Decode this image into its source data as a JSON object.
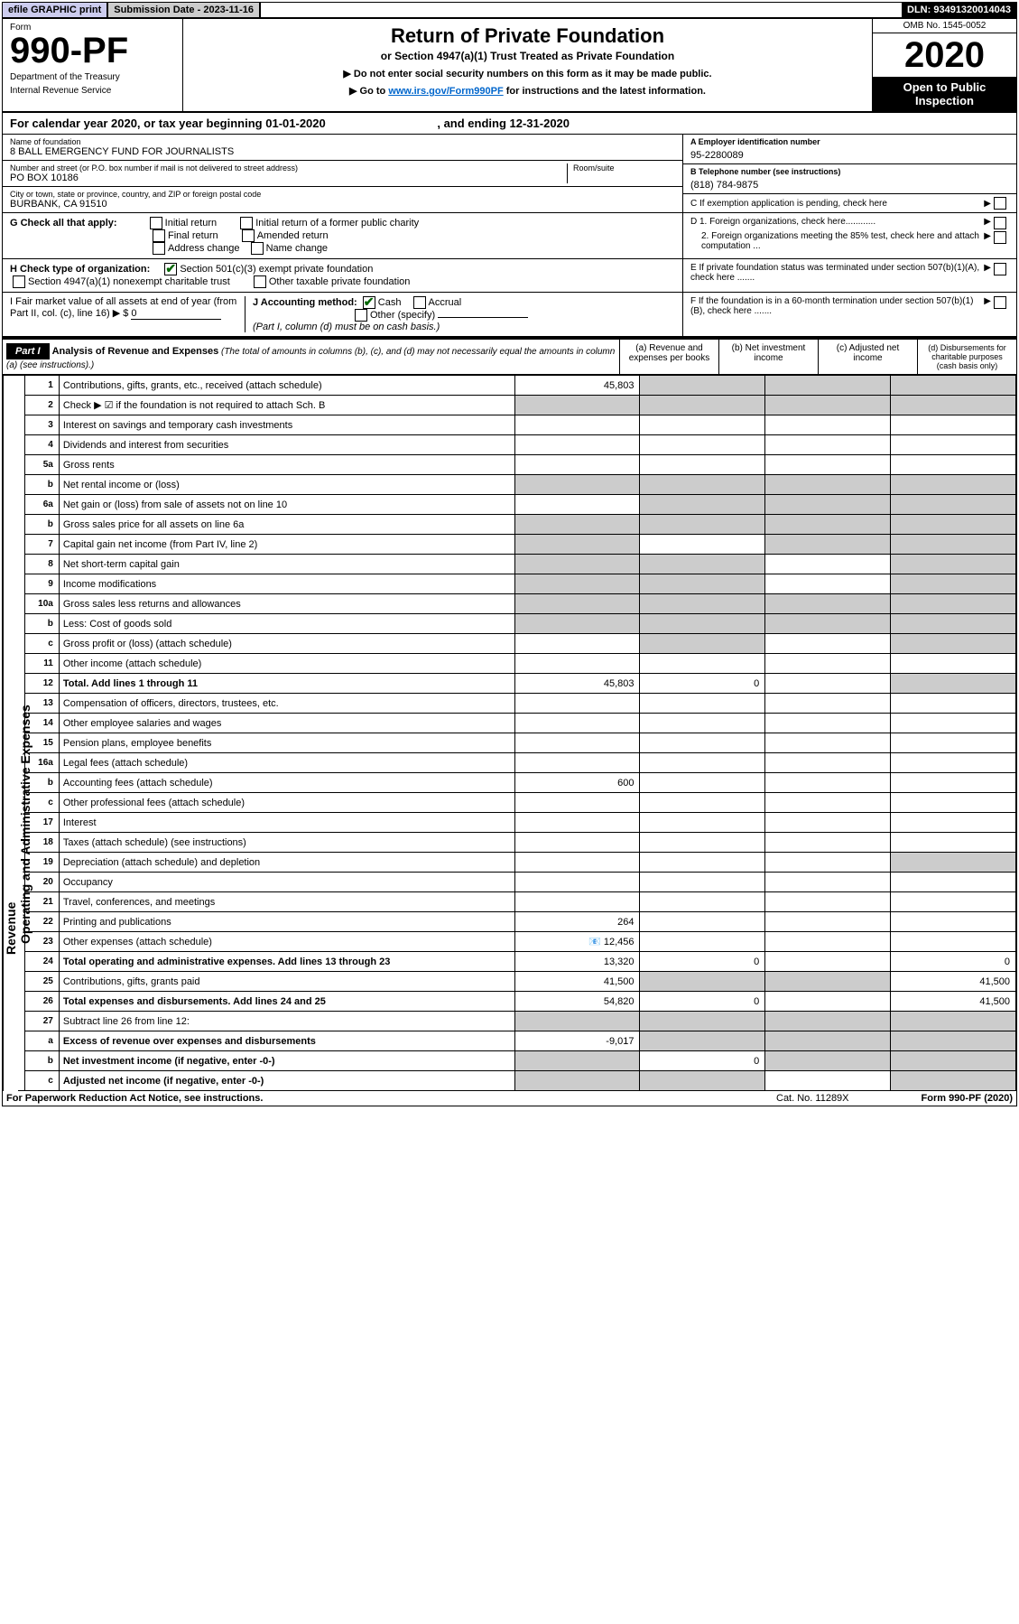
{
  "topbar": {
    "efile": "efile GRAPHIC print",
    "subdate_label": "Submission Date - ",
    "subdate": "2023-11-16",
    "dln_label": "DLN: ",
    "dln": "93491320014043"
  },
  "header": {
    "form_label": "Form",
    "form_no": "990-PF",
    "dept1": "Department of the Treasury",
    "dept2": "Internal Revenue Service",
    "title": "Return of Private Foundation",
    "subtitle": "or Section 4947(a)(1) Trust Treated as Private Foundation",
    "note1": "▶ Do not enter social security numbers on this form as it may be made public.",
    "note2_pre": "▶ Go to ",
    "note2_link": "www.irs.gov/Form990PF",
    "note2_post": " for instructions and the latest information.",
    "omb": "OMB No. 1545-0052",
    "year": "2020",
    "open": "Open to Public Inspection"
  },
  "calyear": {
    "text_pre": "For calendar year 2020, or tax year beginning ",
    "begin": "01-01-2020",
    "text_mid": " , and ending ",
    "end": "12-31-2020"
  },
  "entity": {
    "name_label": "Name of foundation",
    "name": "8 BALL EMERGENCY FUND FOR JOURNALISTS",
    "addr_label": "Number and street (or P.O. box number if mail is not delivered to street address)",
    "addr": "PO BOX 10186",
    "room_label": "Room/suite",
    "city_label": "City or town, state or province, country, and ZIP or foreign postal code",
    "city": "BURBANK, CA  91510",
    "ein_label": "A Employer identification number",
    "ein": "95-2280089",
    "phone_label": "B Telephone number (see instructions)",
    "phone": "(818) 784-9875",
    "c_label": "C If exemption application is pending, check here",
    "d1": "D 1. Foreign organizations, check here............",
    "d2": "2. Foreign organizations meeting the 85% test, check here and attach computation ...",
    "e_label": "E If private foundation status was terminated under section 507(b)(1)(A), check here .......",
    "f_label": "F If the foundation is in a 60-month termination under section 507(b)(1)(B), check here ......."
  },
  "g": {
    "label": "G Check all that apply:",
    "opts": [
      "Initial return",
      "Initial return of a former public charity",
      "Final return",
      "Amended return",
      "Address change",
      "Name change"
    ]
  },
  "h": {
    "label": "H Check type of organization:",
    "opt1": "Section 501(c)(3) exempt private foundation",
    "opt2": "Section 4947(a)(1) nonexempt charitable trust",
    "opt3": "Other taxable private foundation"
  },
  "i": {
    "label": "I Fair market value of all assets at end of year (from Part II, col. (c), line 16) ▶ $",
    "val": "0"
  },
  "j": {
    "label": "J Accounting method:",
    "cash": "Cash",
    "accrual": "Accrual",
    "other": "Other (specify)",
    "note": "(Part I, column (d) must be on cash basis.)"
  },
  "part1": {
    "header": "Part I",
    "title": "Analysis of Revenue and Expenses",
    "note": " (The total of amounts in columns (b), (c), and (d) may not necessarily equal the amounts in column (a) (see instructions).)",
    "cols": {
      "a": "(a) Revenue and expenses per books",
      "b": "(b) Net investment income",
      "c": "(c) Adjusted net income",
      "d": "(d) Disbursements for charitable purposes (cash basis only)"
    }
  },
  "sidelabels": {
    "rev": "Revenue",
    "exp": "Operating and Administrative Expenses"
  },
  "rows": [
    {
      "n": "1",
      "t": "Contributions, gifts, grants, etc., received (attach schedule)",
      "a": "45,803",
      "shade_bcd": true
    },
    {
      "n": "2",
      "t": "Check ▶ ☑ if the foundation is not required to attach Sch. B",
      "checkmark": true,
      "shade_all": true
    },
    {
      "n": "3",
      "t": "Interest on savings and temporary cash investments"
    },
    {
      "n": "4",
      "t": "Dividends and interest from securities"
    },
    {
      "n": "5a",
      "t": "Gross rents"
    },
    {
      "n": "b",
      "t": "Net rental income or (loss)",
      "sub": true,
      "shade_all": true
    },
    {
      "n": "6a",
      "t": "Net gain or (loss) from sale of assets not on line 10",
      "shade_bcd": true
    },
    {
      "n": "b",
      "t": "Gross sales price for all assets on line 6a",
      "sub": true,
      "shade_all": true
    },
    {
      "n": "7",
      "t": "Capital gain net income (from Part IV, line 2)",
      "shade_acd": true
    },
    {
      "n": "8",
      "t": "Net short-term capital gain",
      "shade_abd": true
    },
    {
      "n": "9",
      "t": "Income modifications",
      "shade_abd": true
    },
    {
      "n": "10a",
      "t": "Gross sales less returns and allowances",
      "sub": true,
      "shade_all": true
    },
    {
      "n": "b",
      "t": "Less: Cost of goods sold",
      "sub": true,
      "shade_all": true
    },
    {
      "n": "c",
      "t": "Gross profit or (loss) (attach schedule)",
      "shade_bd": true
    },
    {
      "n": "11",
      "t": "Other income (attach schedule)"
    },
    {
      "n": "12",
      "t": "Total. Add lines 1 through 11",
      "bold": true,
      "a": "45,803",
      "b": "0",
      "shade_d": true
    },
    {
      "n": "13",
      "t": "Compensation of officers, directors, trustees, etc."
    },
    {
      "n": "14",
      "t": "Other employee salaries and wages"
    },
    {
      "n": "15",
      "t": "Pension plans, employee benefits"
    },
    {
      "n": "16a",
      "t": "Legal fees (attach schedule)"
    },
    {
      "n": "b",
      "t": "Accounting fees (attach schedule)",
      "a": "600"
    },
    {
      "n": "c",
      "t": "Other professional fees (attach schedule)"
    },
    {
      "n": "17",
      "t": "Interest"
    },
    {
      "n": "18",
      "t": "Taxes (attach schedule) (see instructions)"
    },
    {
      "n": "19",
      "t": "Depreciation (attach schedule) and depletion",
      "shade_d": true
    },
    {
      "n": "20",
      "t": "Occupancy"
    },
    {
      "n": "21",
      "t": "Travel, conferences, and meetings"
    },
    {
      "n": "22",
      "t": "Printing and publications",
      "a": "264"
    },
    {
      "n": "23",
      "t": "Other expenses (attach schedule)",
      "icon": true,
      "a": "12,456"
    },
    {
      "n": "24",
      "t": "Total operating and administrative expenses. Add lines 13 through 23",
      "bold": true,
      "a": "13,320",
      "b": "0",
      "d": "0"
    },
    {
      "n": "25",
      "t": "Contributions, gifts, grants paid",
      "a": "41,500",
      "shade_bc": true,
      "d": "41,500"
    },
    {
      "n": "26",
      "t": "Total expenses and disbursements. Add lines 24 and 25",
      "bold": true,
      "a": "54,820",
      "b": "0",
      "d": "41,500"
    },
    {
      "n": "27",
      "t": "Subtract line 26 from line 12:",
      "shade_all": true
    },
    {
      "n": "a",
      "t": "Excess of revenue over expenses and disbursements",
      "bold": true,
      "a": "-9,017",
      "shade_bcd": true
    },
    {
      "n": "b",
      "t": "Net investment income (if negative, enter -0-)",
      "bold": true,
      "b": "0",
      "shade_acd": true
    },
    {
      "n": "c",
      "t": "Adjusted net income (if negative, enter -0-)",
      "bold": true,
      "shade_abd": true
    }
  ],
  "footer": {
    "left": "For Paperwork Reduction Act Notice, see instructions.",
    "mid": "Cat. No. 11289X",
    "right": "Form 990-PF (2020)"
  }
}
